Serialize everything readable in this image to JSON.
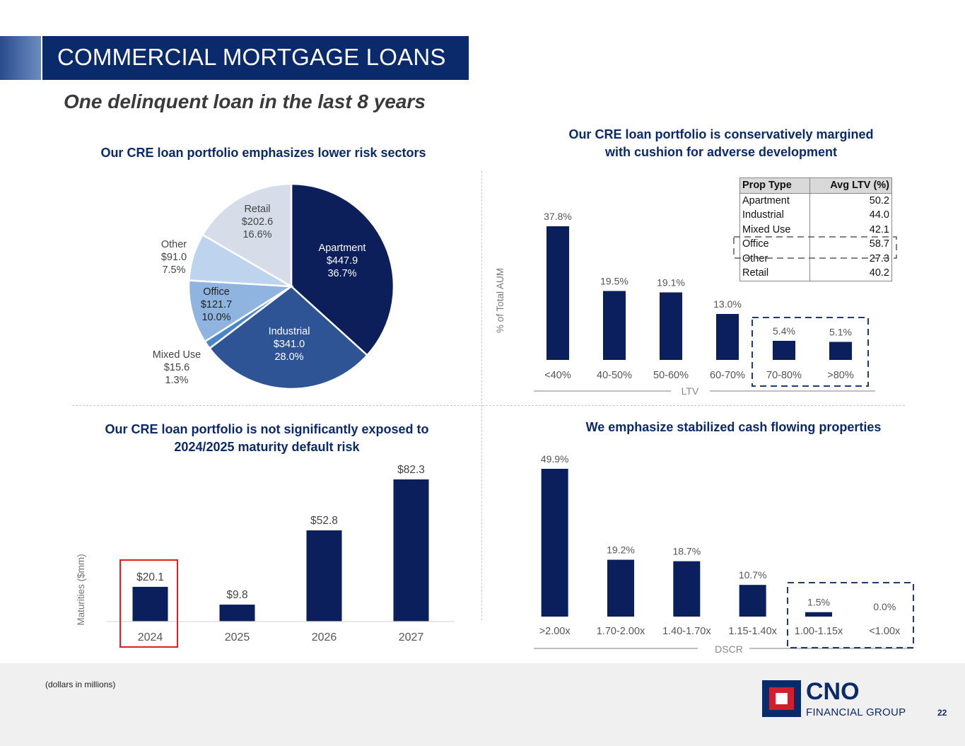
{
  "header": {
    "title": "COMMERCIAL MORTGAGE LOANS",
    "subtitle": "One delinquent loan in the last 8 years"
  },
  "footer": {
    "note": "(dollars in millions)",
    "page_number": "22",
    "logo_text_main": "CNO",
    "logo_text_sub": "FINANCIAL GROUP"
  },
  "colors": {
    "navy": "#0a2a6c",
    "bar": "#0a1f5c",
    "highlight_red": "#e02020"
  },
  "chart_data": [
    {
      "id": "sector-pie",
      "type": "pie",
      "title": "Our CRE loan portfolio emphasizes lower risk sectors",
      "slices": [
        {
          "name": "Apartment",
          "value": 447.9,
          "value_label": "$447.9",
          "pct_label": "36.7%",
          "pct": 36.7,
          "color": "#0c1f5a"
        },
        {
          "name": "Industrial",
          "value": 341.0,
          "value_label": "$341.0",
          "pct_label": "28.0%",
          "pct": 28.0,
          "color": "#2f5495"
        },
        {
          "name": "Mixed  Use",
          "value": 15.6,
          "value_label": "$15.6",
          "pct_label": "1.3%",
          "pct": 1.3,
          "color": "#4a86c8"
        },
        {
          "name": "Office",
          "value": 121.7,
          "value_label": "$121.7",
          "pct_label": "10.0%",
          "pct": 10.0,
          "color": "#8fb4e0"
        },
        {
          "name": "Other",
          "value": 91.0,
          "value_label": "$91.0",
          "pct_label": "7.5%",
          "pct": 7.5,
          "color": "#bed4ee"
        },
        {
          "name": "Retail",
          "value": 202.6,
          "value_label": "$202.6",
          "pct_label": "16.6%",
          "pct": 16.6,
          "color": "#d6dde9"
        }
      ]
    },
    {
      "id": "ltv-bar",
      "type": "bar",
      "title": "Our CRE loan portfolio is conservatively margined with cushion for adverse development",
      "title_lines": [
        "Our CRE loan portfolio is conservatively margined",
        "with cushion for adverse development"
      ],
      "categories": [
        "<40%",
        "40-50%",
        "50-60%",
        "60-70%",
        "70-80%",
        ">80%"
      ],
      "values": [
        37.8,
        19.5,
        19.1,
        13.0,
        5.4,
        5.1
      ],
      "value_labels": [
        "37.8%",
        "19.5%",
        "19.1%",
        "13.0%",
        "5.4%",
        "5.1%"
      ],
      "xlabel": "LTV",
      "ylabel": "% of Total AUM",
      "ylim": [
        0,
        37.8
      ],
      "highlighted_categories": [
        "70-80%",
        ">80%"
      ],
      "table": {
        "headers": [
          "Prop Type",
          "Avg LTV (%)"
        ],
        "rows": [
          [
            "Apartment",
            "50.2"
          ],
          [
            "Industrial",
            "44.0"
          ],
          [
            "Mixed Use",
            "42.1"
          ],
          [
            "Office",
            "58.7"
          ],
          [
            "Other",
            "27.3"
          ],
          [
            "Retail",
            "40.2"
          ]
        ],
        "highlighted_row": "Office"
      }
    },
    {
      "id": "maturity-bar",
      "type": "bar",
      "title": "Our CRE loan portfolio is not significantly exposed to 2024/2025 maturity default risk",
      "title_lines": [
        "Our CRE loan portfolio is not significantly exposed to",
        "2024/2025 maturity default risk"
      ],
      "categories": [
        "2024",
        "2025",
        "2026",
        "2027"
      ],
      "values": [
        20.1,
        9.8,
        52.8,
        82.3
      ],
      "value_labels": [
        "$20.1",
        "$9.8",
        "$52.8",
        "$82.3"
      ],
      "xlabel": "",
      "ylabel": "Maturities ($mm)",
      "ylim": [
        0,
        82.3
      ],
      "highlighted_categories": [
        "2024"
      ]
    },
    {
      "id": "dscr-bar",
      "type": "bar",
      "title": "We emphasize stabilized cash flowing properties",
      "categories": [
        ">2.00x",
        "1.70-2.00x",
        "1.40-1.70x",
        "1.15-1.40x",
        "1.00-1.15x",
        "<1.00x"
      ],
      "values": [
        49.9,
        19.2,
        18.7,
        10.7,
        1.5,
        0.0
      ],
      "value_labels": [
        "49.9%",
        "19.2%",
        "18.7%",
        "10.7%",
        "1.5%",
        "0.0%"
      ],
      "xlabel": "DSCR",
      "ylabel": "",
      "ylim": [
        0,
        49.9
      ],
      "highlighted_categories": [
        "1.00-1.15x",
        "<1.00x"
      ]
    }
  ]
}
